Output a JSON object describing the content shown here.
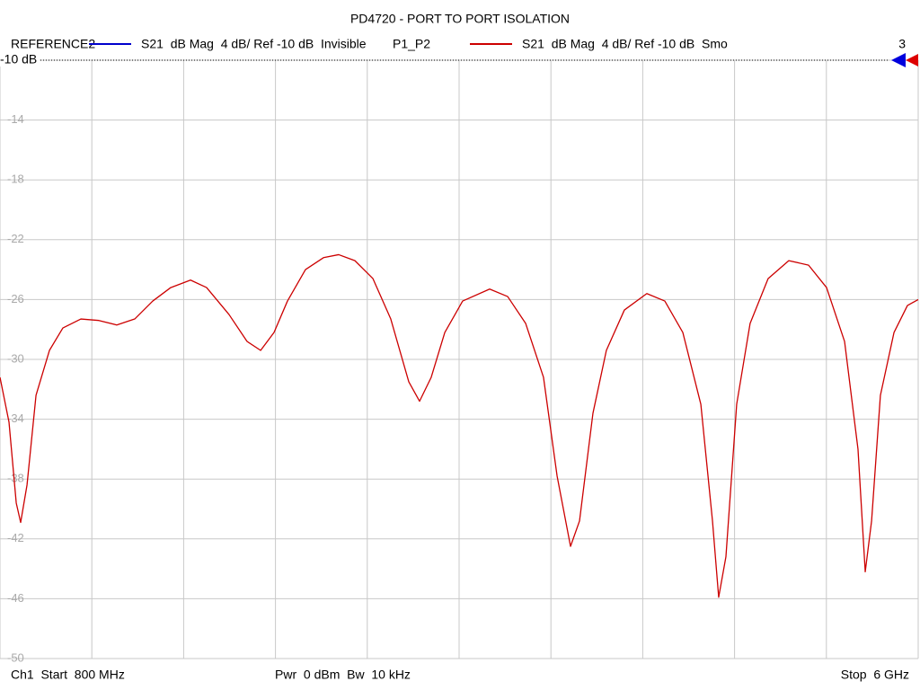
{
  "chart_data": {
    "type": "line",
    "title": "PD4720 - PORT TO PORT ISOLATION",
    "reference": {
      "name": "REFERENCE2",
      "label": "S21  dB Mag  4 dB/ Ref -10 dB  Invisible",
      "color": "#0000cc"
    },
    "reference_level": "-10 dB",
    "channel_number": "3",
    "footer": {
      "start": "Ch1  Start  800 MHz",
      "power": "Pwr  0 dBm  Bw  10 kHz",
      "stop": "Stop  6 GHz"
    },
    "x": [
      800,
      851,
      892,
      917,
      953,
      1004,
      1080,
      1156,
      1258,
      1360,
      1461,
      1563,
      1665,
      1767,
      1879,
      1970,
      2097,
      2199,
      2276,
      2352,
      2428,
      2530,
      2632,
      2718,
      2810,
      2912,
      3013,
      3115,
      3176,
      3242,
      3319,
      3420,
      3573,
      3675,
      3777,
      3878,
      3955,
      4031,
      4082,
      4158,
      4234,
      4336,
      4463,
      4565,
      4667,
      4769,
      4835,
      4870,
      4911,
      4972,
      5048,
      5150,
      5267,
      5379,
      5481,
      5583,
      5659,
      5700,
      5736,
      5786,
      5863,
      5939,
      6000
    ],
    "series": [
      {
        "name": "P1_P2",
        "label": "S21  dB Mag  4 dB/ Ref -10 dB  Smo",
        "color": "#cc0000",
        "values": [
          -31.2,
          -34.2,
          -39.6,
          -40.9,
          -38.4,
          -32.4,
          -29.4,
          -27.9,
          -27.3,
          -27.4,
          -27.7,
          -27.3,
          -26.1,
          -25.2,
          -24.7,
          -25.2,
          -27.0,
          -28.8,
          -29.4,
          -28.2,
          -26.1,
          -24.0,
          -23.2,
          -23.0,
          -23.4,
          -24.6,
          -27.3,
          -31.5,
          -32.8,
          -31.2,
          -28.2,
          -26.1,
          -25.3,
          -25.8,
          -27.6,
          -31.2,
          -37.8,
          -42.5,
          -40.8,
          -33.6,
          -29.4,
          -26.7,
          -25.6,
          -26.1,
          -28.2,
          -33.0,
          -40.8,
          -45.9,
          -43.2,
          -33.0,
          -27.6,
          -24.6,
          -23.4,
          -23.7,
          -25.2,
          -28.8,
          -36.0,
          -44.2,
          -40.8,
          -32.4,
          -28.2,
          -26.4,
          -26.0
        ]
      }
    ],
    "xlim": [
      800,
      6000
    ],
    "xticks": [
      800,
      1320,
      1840,
      2360,
      2880,
      3400,
      3920,
      4440,
      4960,
      5480,
      6000
    ],
    "ylim": [
      -50,
      -10
    ],
    "yticks": [
      -10,
      -14,
      -18,
      -22,
      -26,
      -30,
      -34,
      -38,
      -42,
      -46,
      -50
    ],
    "grid": true
  }
}
